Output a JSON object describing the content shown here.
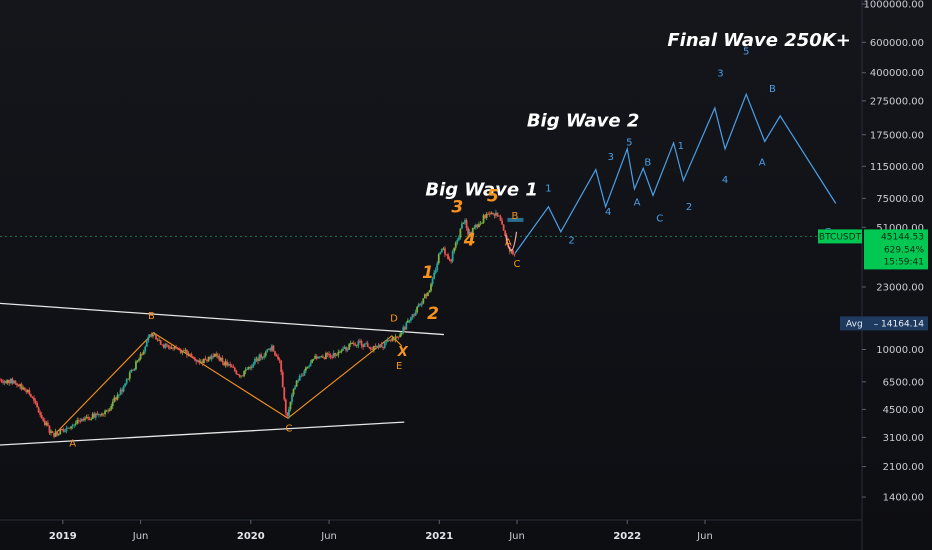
{
  "chart_data": {
    "type": "candlestick",
    "symbol": "BTCUSDT",
    "y_scale": "log",
    "ylim": [
      1000,
      1000000
    ],
    "xlim": [
      "2018-09-01",
      "2023-05-01"
    ],
    "y_ticks": [
      "1000000.00",
      "600000.00",
      "400000.00",
      "275000.00",
      "175000.00",
      "115000.00",
      "75000.00",
      "51000.00",
      "23000.00",
      "10000.00",
      "6500.00",
      "4500.00",
      "3100.00",
      "2100.00",
      "1400.00"
    ],
    "x_ticks": [
      {
        "label": "2019",
        "date": "2019-01-01",
        "bold": true
      },
      {
        "label": "Jun",
        "date": "2019-06-01",
        "bold": false
      },
      {
        "label": "2020",
        "date": "2020-01-01",
        "bold": true
      },
      {
        "label": "Jun",
        "date": "2020-06-01",
        "bold": false
      },
      {
        "label": "2021",
        "date": "2021-01-01",
        "bold": true
      },
      {
        "label": "Jun",
        "date": "2021-06-01",
        "bold": false
      },
      {
        "label": "2022",
        "date": "2022-01-01",
        "bold": true
      },
      {
        "label": "Jun",
        "date": "2022-06-01",
        "bold": false
      }
    ],
    "price_path": [
      [
        "2018-09-01",
        6700
      ],
      [
        "2018-10-01",
        6500
      ],
      [
        "2018-11-01",
        5500
      ],
      [
        "2018-11-25",
        4000
      ],
      [
        "2018-12-15",
        3200
      ],
      [
        "2019-01-15",
        3600
      ],
      [
        "2019-02-15",
        3900
      ],
      [
        "2019-04-01",
        4500
      ],
      [
        "2019-05-01",
        6000
      ],
      [
        "2019-06-01",
        9000
      ],
      [
        "2019-06-26",
        12500
      ],
      [
        "2019-07-20",
        10500
      ],
      [
        "2019-08-20",
        10000
      ],
      [
        "2019-09-25",
        8500
      ],
      [
        "2019-10-26",
        9300
      ],
      [
        "2019-12-15",
        7100
      ],
      [
        "2020-01-15",
        8700
      ],
      [
        "2020-02-13",
        10300
      ],
      [
        "2020-03-01",
        8600
      ],
      [
        "2020-03-13",
        4000
      ],
      [
        "2020-04-01",
        6500
      ],
      [
        "2020-05-10",
        9000
      ],
      [
        "2020-06-15",
        9400
      ],
      [
        "2020-07-28",
        11000
      ],
      [
        "2020-09-05",
        10200
      ],
      [
        "2020-10-10",
        11500
      ],
      [
        "2020-11-01",
        13800
      ],
      [
        "2020-12-01",
        19000
      ],
      [
        "2020-12-20",
        23500
      ],
      [
        "2021-01-08",
        40000
      ],
      [
        "2021-01-25",
        32000
      ],
      [
        "2021-02-21",
        57000
      ],
      [
        "2021-03-01",
        46000
      ],
      [
        "2021-04-14",
        64000
      ],
      [
        "2021-05-01",
        57000
      ],
      [
        "2021-05-19",
        38000
      ],
      [
        "2021-05-28",
        36000
      ]
    ],
    "annotations": {
      "titles": [
        {
          "text": "Big Wave 1",
          "date": "2020-12-05",
          "price": 78000
        },
        {
          "text": "Big Wave 2",
          "date": "2021-06-20",
          "price": 195000
        },
        {
          "text": "Final Wave 250K+",
          "date": "2022-03-20",
          "price": 570000
        }
      ],
      "orange_numbers": [
        {
          "text": "1",
          "date": "2020-12-10",
          "price": 26000
        },
        {
          "text": "2",
          "date": "2020-12-20",
          "price": 15000
        },
        {
          "text": "3",
          "date": "2021-02-05",
          "price": 62000
        },
        {
          "text": "4",
          "date": "2021-03-01",
          "price": 40000
        },
        {
          "text": "5",
          "date": "2021-04-15",
          "price": 72000
        }
      ],
      "orange_letters": [
        {
          "text": "A",
          "date": "2019-01-20",
          "price": 2750
        },
        {
          "text": "B",
          "date": "2019-06-22",
          "price": 15000
        },
        {
          "text": "C",
          "date": "2020-03-15",
          "price": 3350
        },
        {
          "text": "D",
          "date": "2020-10-05",
          "price": 14500
        },
        {
          "text": "E",
          "date": "2020-10-15",
          "price": 7700
        },
        {
          "text": "A",
          "date": "2021-05-15",
          "price": 40000
        },
        {
          "text": "B",
          "date": "2021-05-28",
          "price": 57000
        },
        {
          "text": "C",
          "date": "2021-06-01",
          "price": 30000
        }
      ],
      "orange_x": {
        "text": "X",
        "date": "2020-10-22",
        "price": 9200
      },
      "blue_labels": [
        {
          "text": "1",
          "date": "2021-08-01",
          "price": 82000
        },
        {
          "text": "2",
          "date": "2021-09-15",
          "price": 41000
        },
        {
          "text": "3",
          "date": "2021-11-30",
          "price": 125000
        },
        {
          "text": "4",
          "date": "2021-11-25",
          "price": 60000
        },
        {
          "text": "5",
          "date": "2022-01-05",
          "price": 152000
        },
        {
          "text": "A",
          "date": "2022-01-20",
          "price": 68000
        },
        {
          "text": "B",
          "date": "2022-02-10",
          "price": 116000
        },
        {
          "text": "C",
          "date": "2022-03-05",
          "price": 55000
        },
        {
          "text": "1",
          "date": "2022-04-15",
          "price": 145000
        },
        {
          "text": "2",
          "date": "2022-05-01",
          "price": 64000
        },
        {
          "text": "3",
          "date": "2022-07-01",
          "price": 380000
        },
        {
          "text": "4",
          "date": "2022-07-10",
          "price": 92000
        },
        {
          "text": "5",
          "date": "2022-08-20",
          "price": 510000
        },
        {
          "text": "A",
          "date": "2022-09-20",
          "price": 116000
        },
        {
          "text": "B",
          "date": "2022-10-10",
          "price": 310000
        },
        {
          "text": "C",
          "date": "2023-01-25",
          "price": 46000
        }
      ]
    },
    "projection_path": [
      [
        "2021-05-28",
        36000
      ],
      [
        "2021-08-01",
        67000
      ],
      [
        "2021-08-25",
        48000
      ],
      [
        "2021-11-01",
        110000
      ],
      [
        "2021-11-20",
        67000
      ],
      [
        "2022-01-01",
        145000
      ],
      [
        "2022-01-15",
        85000
      ],
      [
        "2022-02-01",
        112000
      ],
      [
        "2022-02-20",
        78000
      ],
      [
        "2022-04-01",
        157000
      ],
      [
        "2022-04-20",
        95000
      ],
      [
        "2022-06-20",
        250000
      ],
      [
        "2022-07-10",
        145000
      ],
      [
        "2022-08-20",
        300000
      ],
      [
        "2022-09-25",
        160000
      ],
      [
        "2022-10-25",
        225000
      ],
      [
        "2023-02-10",
        70000
      ]
    ],
    "orange_wave_path": [
      [
        "2018-12-15",
        3200
      ],
      [
        "2019-06-26",
        12500
      ],
      [
        "2020-03-13",
        4000
      ],
      [
        "2020-10-01",
        12000
      ],
      [
        "2020-10-20",
        10500
      ]
    ],
    "trendlines": [
      {
        "from": [
          "2018-09-01",
          18500
        ],
        "to": [
          "2021-01-10",
          12200
        ],
        "color": "#e6e6e6"
      },
      {
        "from": [
          "2018-09-01",
          2800
        ],
        "to": [
          "2020-10-25",
          3800
        ],
        "color": "#e6e6e6"
      }
    ],
    "price_tags": [
      {
        "label": "BTCUSDT",
        "value": "45144.53",
        "extra": [
          "629.54%",
          "15:59:41"
        ],
        "price": 45144.53,
        "color": "#00c853"
      },
      {
        "label": "Avg",
        "value": "14164.14",
        "price": 14164.14,
        "color": "#1f3a5f"
      }
    ],
    "colors": {
      "bull": "#26a69a",
      "bullAlt": "#7cb342",
      "bear": "#ef5350",
      "projection": "#4a9fe8",
      "orange": "#f7931a",
      "background": "#0f1014"
    }
  }
}
